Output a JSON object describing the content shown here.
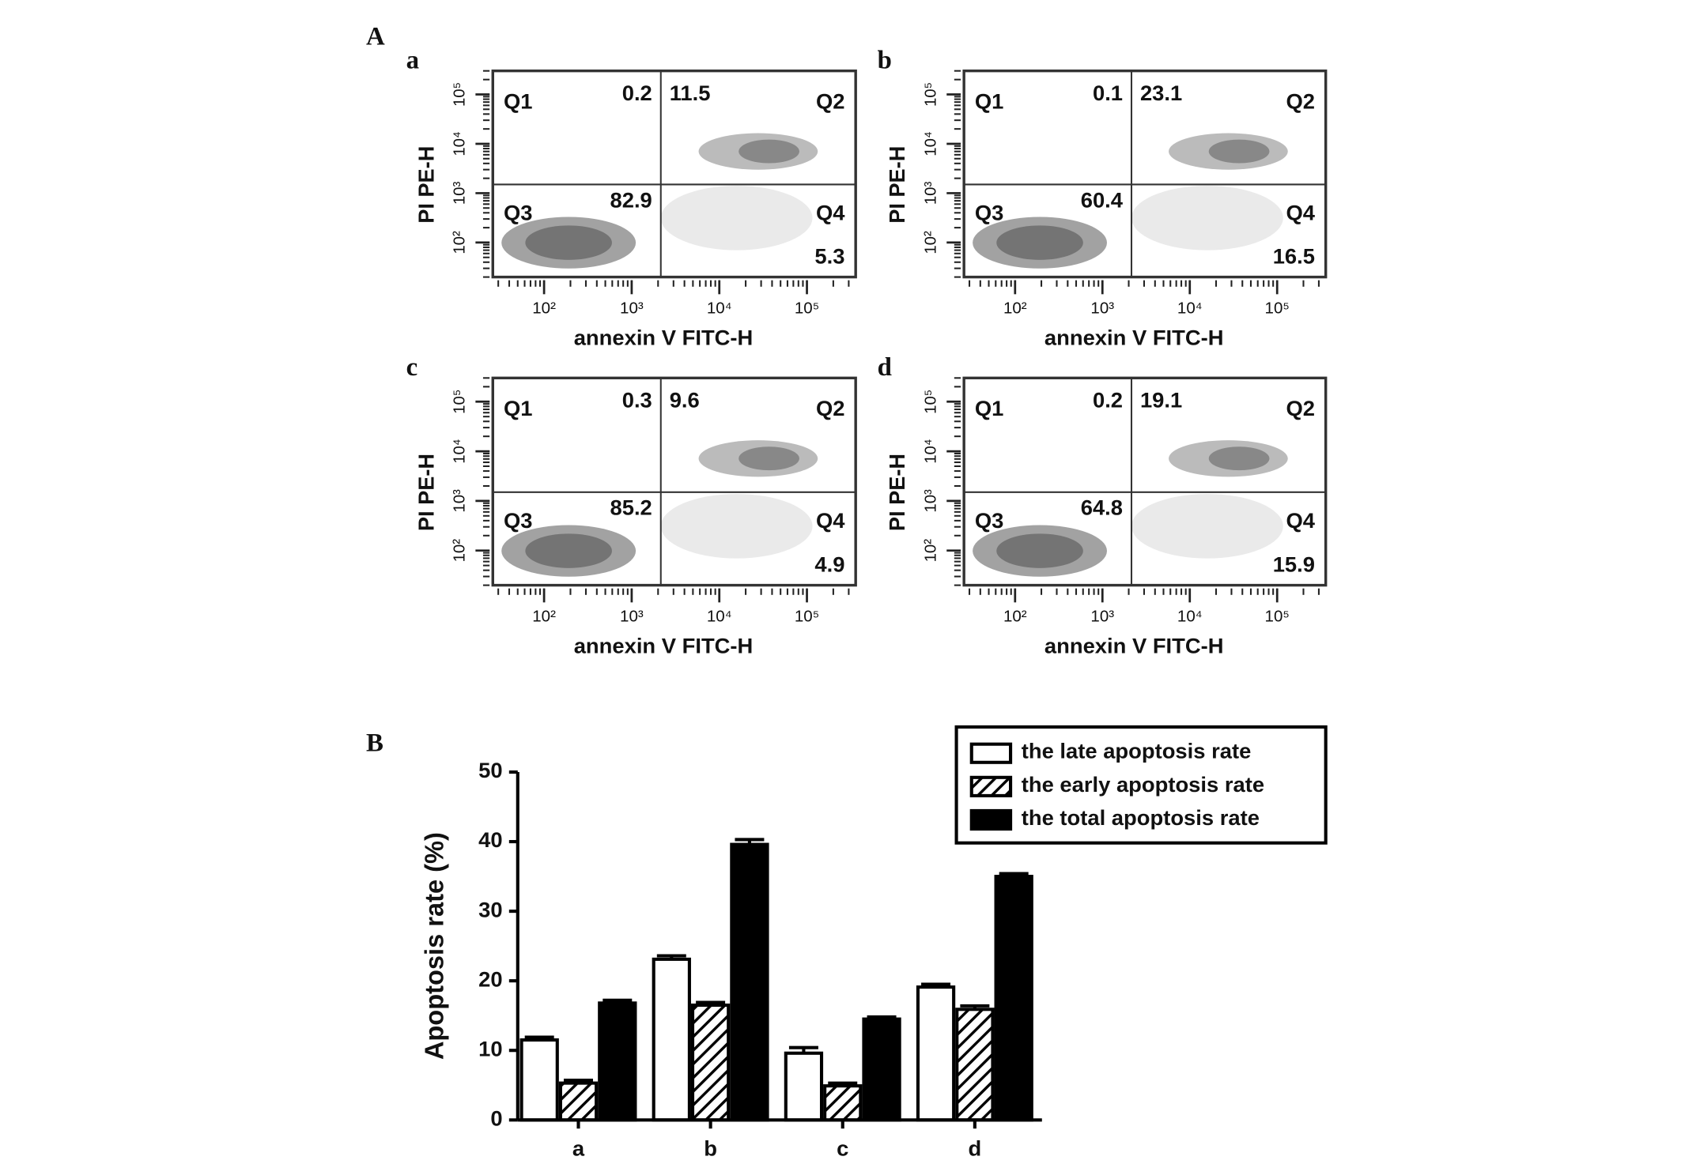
{
  "panel_labels": [
    "A",
    "B"
  ],
  "chart_data": [
    {
      "type": "flow",
      "label": "a",
      "xlabel": "annexin V FITC-H",
      "ylabel": "PI PE-H",
      "log_scale": true,
      "xlim": [
        26,
        360000
      ],
      "ylim": [
        20,
        300000
      ],
      "xticks": [
        {
          "value": 100,
          "label": "10²"
        },
        {
          "value": 1000,
          "label": "10³"
        },
        {
          "value": 10000,
          "label": "10⁴"
        },
        {
          "value": 100000,
          "label": "10⁵"
        }
      ],
      "yticks": [
        {
          "value": 100,
          "label": "10²"
        },
        {
          "value": 1000,
          "label": "10³"
        },
        {
          "value": 10000,
          "label": "10⁴"
        },
        {
          "value": 100000,
          "label": "10⁵"
        }
      ],
      "quadrant_gate": [
        2150,
        1500
      ],
      "quadrant_names": [
        "Q1",
        "Q2",
        "Q3",
        "Q4"
      ],
      "quadrant_values": [
        0.2,
        11.5,
        82.9,
        5.3
      ]
    },
    {
      "type": "flow",
      "label": "b",
      "xlabel": "annexin V FITC-H",
      "ylabel": "PI PE-H",
      "log_scale": true,
      "xlim": [
        26,
        360000
      ],
      "ylim": [
        20,
        300000
      ],
      "xticks": [
        {
          "value": 100,
          "label": "10²"
        },
        {
          "value": 1000,
          "label": "10³"
        },
        {
          "value": 10000,
          "label": "10⁴"
        },
        {
          "value": 100000,
          "label": "10⁵"
        }
      ],
      "yticks": [
        {
          "value": 100,
          "label": "10²"
        },
        {
          "value": 1000,
          "label": "10³"
        },
        {
          "value": 10000,
          "label": "10⁴"
        },
        {
          "value": 100000,
          "label": "10⁵"
        }
      ],
      "quadrant_gate": [
        2150,
        1500
      ],
      "quadrant_names": [
        "Q1",
        "Q2",
        "Q3",
        "Q4"
      ],
      "quadrant_values": [
        0.1,
        23.1,
        60.4,
        16.5
      ]
    },
    {
      "type": "flow",
      "label": "c",
      "xlabel": "annexin V FITC-H",
      "ylabel": "PI PE-H",
      "log_scale": true,
      "xlim": [
        26,
        360000
      ],
      "ylim": [
        20,
        300000
      ],
      "xticks": [
        {
          "value": 100,
          "label": "10²"
        },
        {
          "value": 1000,
          "label": "10³"
        },
        {
          "value": 10000,
          "label": "10⁴"
        },
        {
          "value": 100000,
          "label": "10⁵"
        }
      ],
      "yticks": [
        {
          "value": 100,
          "label": "10²"
        },
        {
          "value": 1000,
          "label": "10³"
        },
        {
          "value": 10000,
          "label": "10⁴"
        },
        {
          "value": 100000,
          "label": "10⁵"
        }
      ],
      "quadrant_gate": [
        2150,
        1500
      ],
      "quadrant_names": [
        "Q1",
        "Q2",
        "Q3",
        "Q4"
      ],
      "quadrant_values": [
        0.3,
        9.6,
        85.2,
        4.9
      ]
    },
    {
      "type": "flow",
      "label": "d",
      "xlabel": "annexin V FITC-H",
      "ylabel": "PI PE-H",
      "log_scale": true,
      "xlim": [
        26,
        360000
      ],
      "ylim": [
        20,
        300000
      ],
      "xticks": [
        {
          "value": 100,
          "label": "10²"
        },
        {
          "value": 1000,
          "label": "10³"
        },
        {
          "value": 10000,
          "label": "10⁴"
        },
        {
          "value": 100000,
          "label": "10⁵"
        }
      ],
      "yticks": [
        {
          "value": 100,
          "label": "10²"
        },
        {
          "value": 1000,
          "label": "10³"
        },
        {
          "value": 10000,
          "label": "10⁴"
        },
        {
          "value": 100000,
          "label": "10⁵"
        }
      ],
      "quadrant_gate": [
        2150,
        1500
      ],
      "quadrant_names": [
        "Q1",
        "Q2",
        "Q3",
        "Q4"
      ],
      "quadrant_values": [
        0.2,
        19.1,
        64.8,
        15.9
      ]
    },
    {
      "type": "bar",
      "ylabel": "Apoptosis rate (%)",
      "categories": [
        "a",
        "b",
        "c",
        "d"
      ],
      "ylim": [
        0,
        50
      ],
      "yticks": [
        0,
        10,
        20,
        30,
        40,
        50
      ],
      "legend": "upper right",
      "series": [
        {
          "name": "the late apoptosis rate",
          "color": "#ffffff",
          "values": [
            11.5,
            23.1,
            9.6,
            19.1
          ],
          "errors": [
            0.4,
            0.5,
            0.8,
            0.4
          ]
        },
        {
          "name": "the early apoptosis rate",
          "color": "hatch",
          "values": [
            5.3,
            16.5,
            4.9,
            15.9
          ],
          "errors": [
            0.4,
            0.4,
            0.4,
            0.5
          ]
        },
        {
          "name": "the total apoptosis rate",
          "color": "#000000",
          "values": [
            16.8,
            39.6,
            14.5,
            35.0
          ],
          "errors": [
            0.4,
            0.7,
            0.3,
            0.4
          ]
        }
      ]
    }
  ]
}
